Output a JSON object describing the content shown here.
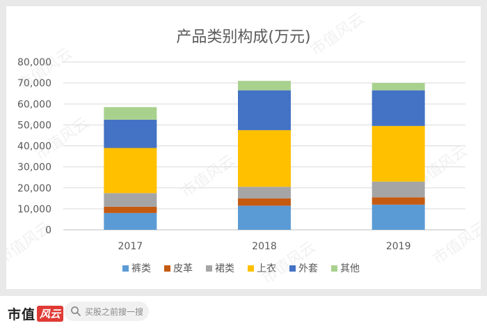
{
  "chart_data": {
    "type": "bar",
    "stacked": true,
    "title": "产品类别构成(万元)",
    "xlabel": "",
    "ylabel": "",
    "categories": [
      "2017",
      "2018",
      "2019"
    ],
    "ylim": [
      0,
      80000
    ],
    "yticks": [
      0,
      10000,
      20000,
      30000,
      40000,
      50000,
      60000,
      70000,
      80000
    ],
    "ytick_labels": [
      "0",
      "10,000",
      "20,000",
      "30,000",
      "40,000",
      "50,000",
      "60,000",
      "70,000",
      "80,000"
    ],
    "grid": true,
    "legend_position": "bottom",
    "series": [
      {
        "name": "裤类",
        "color": "#5b9bd5",
        "values": [
          8000,
          11500,
          12000
        ]
      },
      {
        "name": "皮革",
        "color": "#c55a11",
        "values": [
          3000,
          3500,
          3500
        ]
      },
      {
        "name": "裙类",
        "color": "#a5a5a5",
        "values": [
          6500,
          5500,
          7500
        ]
      },
      {
        "name": "上衣",
        "color": "#ffc000",
        "values": [
          21500,
          27000,
          26500
        ]
      },
      {
        "name": "外套",
        "color": "#4472c4",
        "values": [
          13500,
          19000,
          17000
        ]
      },
      {
        "name": "其他",
        "color": "#a9d18e",
        "values": [
          6000,
          4500,
          3500
        ]
      }
    ]
  },
  "watermark": "市值风云",
  "footer": {
    "brand_name": "市值",
    "brand_badge": "风云",
    "search_placeholder": "买股之前搜一搜"
  }
}
